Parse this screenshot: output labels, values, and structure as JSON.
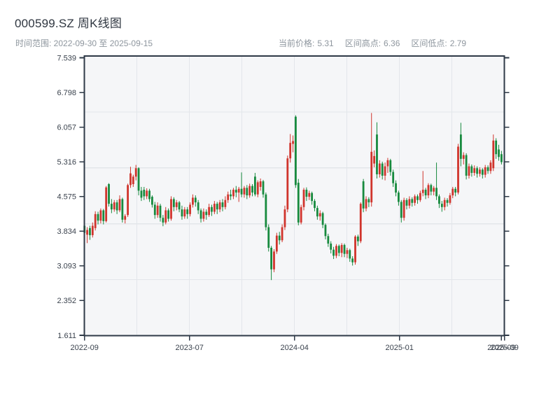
{
  "header": {
    "title": "000599.SZ 周K线图",
    "subtitle": "时间范围: 2022-09-30 至 2025-09-15",
    "stats": [
      {
        "label": "当前价格:",
        "value": "5.31"
      },
      {
        "label": "区间高点:",
        "value": "6.36"
      },
      {
        "label": "区间低点:",
        "value": "2.79"
      }
    ]
  },
  "chart_data": {
    "type": "candlestick",
    "symbol": "000599.SZ",
    "period": "weekly",
    "title": "000599.SZ 周K线图",
    "date_start": "2022-09-30",
    "date_end": "2025-09-15",
    "current_price": 5.31,
    "range_high": 6.36,
    "range_low": 2.79,
    "ylim": [
      1.611,
      7.539
    ],
    "y_ticks": [
      7.539,
      6.798,
      6.057,
      5.316,
      4.575,
      3.834,
      3.093,
      2.352,
      1.611
    ],
    "x_ticks": [
      {
        "label": "2022-09",
        "pos": 0.0
      },
      {
        "label": "2023-07",
        "pos": 0.25
      },
      {
        "label": "2024-04",
        "pos": 0.5
      },
      {
        "label": "2025-01",
        "pos": 0.75
      },
      {
        "label": "2025-09",
        "pos": 0.9928
      },
      {
        "label": "2025-09",
        "pos": 1.0
      }
    ],
    "grid": true,
    "grid_divisions": {
      "x": 8,
      "y": 5
    },
    "colors": {
      "up": "#d0342c",
      "down": "#178a3e",
      "frame": "#2e3947",
      "grid": "#e3e6ea",
      "plot_bg": "#f5f6f8",
      "label": "#3a424d",
      "muted": "#8e969e",
      "title": "#2f3640"
    },
    "candles": [
      [
        3.95,
        4.08,
        3.7,
        3.8
      ],
      [
        3.76,
        3.92,
        3.58,
        3.86
      ],
      [
        3.9,
        3.95,
        3.65,
        3.75
      ],
      [
        3.75,
        4.02,
        3.7,
        3.95
      ],
      [
        3.9,
        4.26,
        3.85,
        4.2
      ],
      [
        4.2,
        4.25,
        3.98,
        4.06
      ],
      [
        4.06,
        4.32,
        4.0,
        4.28
      ],
      [
        4.28,
        4.31,
        3.98,
        4.05
      ],
      [
        4.05,
        4.8,
        4.02,
        4.77
      ],
      [
        4.84,
        4.86,
        4.36,
        4.42
      ],
      [
        4.42,
        4.52,
        4.22,
        4.3
      ],
      [
        4.3,
        4.5,
        4.25,
        4.45
      ],
      [
        4.45,
        4.5,
        4.2,
        4.28
      ],
      [
        4.28,
        4.6,
        4.24,
        4.52
      ],
      [
        4.52,
        4.55,
        4.02,
        4.08
      ],
      [
        4.08,
        4.2,
        4.0,
        4.16
      ],
      [
        4.18,
        4.85,
        4.14,
        4.82
      ],
      [
        4.82,
        5.21,
        4.76,
        5.07
      ],
      [
        4.84,
        5.04,
        4.78,
        5.0
      ],
      [
        5.0,
        5.25,
        4.92,
        5.18
      ],
      [
        5.18,
        5.2,
        4.6,
        4.7
      ],
      [
        4.7,
        4.78,
        4.48,
        4.55
      ],
      [
        4.72,
        4.78,
        4.5,
        4.58
      ],
      [
        4.58,
        4.75,
        4.52,
        4.7
      ],
      [
        4.7,
        4.74,
        4.46,
        4.52
      ],
      [
        4.57,
        4.6,
        4.34,
        4.4
      ],
      [
        4.4,
        4.46,
        4.1,
        4.18
      ],
      [
        4.18,
        4.45,
        4.12,
        4.38
      ],
      [
        4.38,
        4.42,
        4.04,
        4.12
      ],
      [
        4.12,
        4.18,
        3.94,
        4.02
      ],
      [
        4.02,
        4.35,
        3.98,
        4.28
      ],
      [
        4.28,
        4.32,
        4.04,
        4.1
      ],
      [
        4.1,
        4.58,
        4.06,
        4.52
      ],
      [
        4.52,
        4.56,
        4.26,
        4.35
      ],
      [
        4.35,
        4.5,
        4.28,
        4.45
      ],
      [
        4.45,
        4.48,
        4.24,
        4.3
      ],
      [
        4.3,
        4.38,
        4.08,
        4.15
      ],
      [
        4.15,
        4.35,
        4.1,
        4.3
      ],
      [
        4.3,
        4.35,
        4.1,
        4.2
      ],
      [
        4.2,
        4.45,
        4.15,
        4.4
      ],
      [
        4.4,
        4.62,
        4.34,
        4.55
      ],
      [
        4.55,
        4.6,
        4.36,
        4.45
      ],
      [
        4.45,
        4.5,
        4.2,
        4.28
      ],
      [
        4.28,
        4.32,
        4.02,
        4.1
      ],
      [
        4.1,
        4.32,
        4.04,
        4.25
      ],
      [
        4.25,
        4.3,
        4.08,
        4.18
      ],
      [
        4.18,
        4.42,
        4.14,
        4.35
      ],
      [
        4.35,
        4.4,
        4.16,
        4.25
      ],
      [
        4.25,
        4.48,
        4.2,
        4.42
      ],
      [
        4.42,
        4.46,
        4.2,
        4.3
      ],
      [
        4.3,
        4.5,
        4.24,
        4.45
      ],
      [
        4.45,
        4.52,
        4.26,
        4.35
      ],
      [
        4.35,
        4.58,
        4.3,
        4.5
      ],
      [
        4.5,
        4.68,
        4.44,
        4.62
      ],
      [
        4.62,
        4.72,
        4.5,
        4.58
      ],
      [
        4.58,
        4.76,
        4.52,
        4.72
      ],
      [
        4.72,
        4.8,
        4.56,
        4.66
      ],
      [
        4.66,
        4.78,
        4.46,
        4.74
      ],
      [
        4.74,
        5.09,
        4.56,
        4.62
      ],
      [
        4.62,
        4.8,
        4.55,
        4.76
      ],
      [
        4.76,
        4.82,
        4.52,
        4.6
      ],
      [
        4.6,
        4.85,
        4.55,
        4.8
      ],
      [
        4.8,
        4.84,
        4.58,
        4.66
      ],
      [
        5.0,
        5.08,
        4.58,
        4.62
      ],
      [
        4.62,
        4.92,
        4.56,
        4.88
      ],
      [
        4.78,
        4.96,
        4.7,
        4.9
      ],
      [
        4.9,
        4.93,
        4.55,
        4.62
      ],
      [
        4.62,
        4.66,
        3.85,
        3.92
      ],
      [
        3.92,
        3.98,
        3.4,
        3.48
      ],
      [
        3.48,
        3.52,
        2.79,
        3.02
      ],
      [
        3.02,
        3.45,
        2.96,
        3.4
      ],
      [
        3.4,
        3.8,
        3.35,
        3.74
      ],
      [
        3.74,
        3.82,
        3.55,
        3.64
      ],
      [
        3.64,
        3.98,
        3.6,
        3.92
      ],
      [
        3.92,
        4.38,
        3.86,
        4.3
      ],
      [
        4.3,
        5.45,
        4.24,
        5.39
      ],
      [
        5.39,
        5.91,
        5.3,
        5.72
      ],
      [
        5.7,
        5.88,
        5.52,
        5.76
      ],
      [
        6.28,
        6.31,
        4.76,
        4.82
      ],
      [
        4.87,
        4.95,
        3.96,
        4.02
      ],
      [
        4.02,
        4.4,
        3.98,
        4.35
      ],
      [
        4.35,
        4.76,
        4.28,
        4.72
      ],
      [
        4.72,
        4.77,
        4.48,
        4.57
      ],
      [
        4.57,
        4.7,
        4.5,
        4.65
      ],
      [
        4.65,
        4.68,
        4.4,
        4.48
      ],
      [
        4.48,
        4.52,
        4.26,
        4.33
      ],
      [
        4.33,
        4.38,
        4.08,
        4.15
      ],
      [
        4.15,
        4.28,
        4.06,
        4.22
      ],
      [
        4.22,
        4.25,
        3.9,
        3.97
      ],
      [
        3.97,
        4.0,
        3.66,
        3.73
      ],
      [
        3.73,
        3.78,
        3.5,
        3.57
      ],
      [
        3.57,
        3.62,
        3.36,
        3.44
      ],
      [
        3.44,
        3.5,
        3.24,
        3.31
      ],
      [
        3.31,
        3.56,
        3.26,
        3.52
      ],
      [
        3.52,
        3.55,
        3.3,
        3.37
      ],
      [
        3.37,
        3.58,
        3.28,
        3.54
      ],
      [
        3.54,
        3.57,
        3.28,
        3.35
      ],
      [
        3.35,
        3.48,
        3.26,
        3.43
      ],
      [
        3.43,
        3.46,
        3.18,
        3.25
      ],
      [
        3.25,
        3.3,
        3.1,
        3.17
      ],
      [
        3.17,
        3.75,
        3.12,
        3.72
      ],
      [
        3.72,
        3.76,
        3.52,
        3.62
      ],
      [
        3.62,
        4.45,
        3.58,
        4.42
      ],
      [
        4.9,
        4.95,
        4.24,
        4.32
      ],
      [
        4.32,
        4.58,
        4.26,
        4.52
      ],
      [
        4.52,
        4.56,
        4.35,
        4.45
      ],
      [
        4.45,
        6.36,
        4.36,
        5.53
      ],
      [
        5.28,
        5.56,
        5.2,
        5.44
      ],
      [
        5.9,
        6.16,
        4.96,
        5.05
      ],
      [
        5.05,
        5.35,
        4.98,
        5.28
      ],
      [
        5.28,
        5.32,
        4.94,
        5.02
      ],
      [
        5.02,
        5.3,
        4.92,
        5.22
      ],
      [
        5.22,
        5.4,
        5.08,
        5.35
      ],
      [
        5.35,
        5.38,
        5.02,
        5.1
      ],
      [
        5.1,
        5.15,
        4.78,
        4.86
      ],
      [
        4.86,
        4.92,
        4.58,
        4.66
      ],
      [
        4.66,
        4.7,
        4.38,
        4.46
      ],
      [
        4.46,
        4.5,
        4.02,
        4.12
      ],
      [
        4.12,
        4.55,
        4.06,
        4.5
      ],
      [
        4.5,
        4.54,
        4.3,
        4.38
      ],
      [
        4.38,
        4.58,
        4.32,
        4.52
      ],
      [
        4.52,
        4.56,
        4.36,
        4.44
      ],
      [
        4.44,
        4.62,
        4.38,
        4.58
      ],
      [
        4.58,
        4.62,
        4.42,
        4.5
      ],
      [
        4.5,
        4.7,
        4.46,
        4.65
      ],
      [
        4.65,
        5.12,
        4.58,
        4.72
      ],
      [
        4.72,
        4.76,
        4.52,
        4.6
      ],
      [
        4.6,
        4.86,
        4.54,
        4.82
      ],
      [
        4.82,
        4.85,
        4.6,
        4.68
      ],
      [
        4.68,
        4.8,
        4.6,
        4.76
      ],
      [
        4.76,
        5.3,
        4.5,
        4.58
      ],
      [
        4.58,
        4.62,
        4.33,
        4.42
      ],
      [
        4.42,
        4.48,
        4.25,
        4.35
      ],
      [
        4.35,
        4.55,
        4.28,
        4.5
      ],
      [
        4.5,
        4.54,
        4.36,
        4.44
      ],
      [
        4.44,
        4.65,
        4.4,
        4.6
      ],
      [
        4.6,
        4.78,
        4.54,
        4.74
      ],
      [
        4.74,
        4.78,
        4.58,
        4.66
      ],
      [
        4.66,
        5.7,
        4.62,
        5.64
      ],
      [
        5.9,
        6.15,
        5.22,
        5.38
      ],
      [
        5.38,
        5.52,
        5.26,
        5.46
      ],
      [
        5.46,
        5.5,
        4.94,
        5.02
      ],
      [
        5.02,
        5.28,
        4.96,
        5.22
      ],
      [
        5.22,
        5.26,
        5.0,
        5.08
      ],
      [
        5.08,
        5.24,
        5.02,
        5.18
      ],
      [
        5.18,
        5.22,
        4.98,
        5.06
      ],
      [
        5.06,
        5.2,
        5.0,
        5.15
      ],
      [
        5.15,
        5.18,
        4.96,
        5.04
      ],
      [
        5.04,
        5.25,
        4.98,
        5.2
      ],
      [
        5.2,
        5.24,
        5.06,
        5.12
      ],
      [
        5.12,
        5.35,
        5.06,
        5.3
      ],
      [
        5.18,
        5.9,
        5.12,
        5.77
      ],
      [
        5.77,
        5.82,
        5.38,
        5.48
      ],
      [
        5.58,
        5.68,
        5.34,
        5.42
      ],
      [
        5.48,
        5.55,
        5.26,
        5.31
      ]
    ]
  }
}
